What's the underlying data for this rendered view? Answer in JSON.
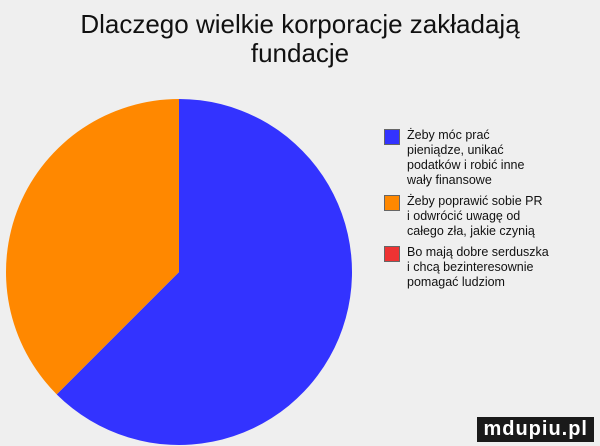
{
  "chart_data": {
    "type": "pie",
    "title_lines": [
      "Dlaczego wielkie korporacje zakładają",
      "fundacje"
    ],
    "start_angle": "top, clockwise",
    "slices": [
      {
        "label": "Żeby móc prać\npieniądze, unikać\npodatków i robić inne\nwały finansowe",
        "value": 62.5,
        "color": "#3333ff"
      },
      {
        "label": "Żeby poprawić sobie PR\ni odwrócić uwagę od\ncałego zła, jakie czynią",
        "value": 37.5,
        "color": "#ff8800"
      },
      {
        "label": "Bo mają dobre serduszka\ni chcą bezinteresownie\npomagać ludziom",
        "value": 0,
        "color": "#ee3333"
      }
    ],
    "legend": "right"
  },
  "watermark": "mdupiu.pl"
}
